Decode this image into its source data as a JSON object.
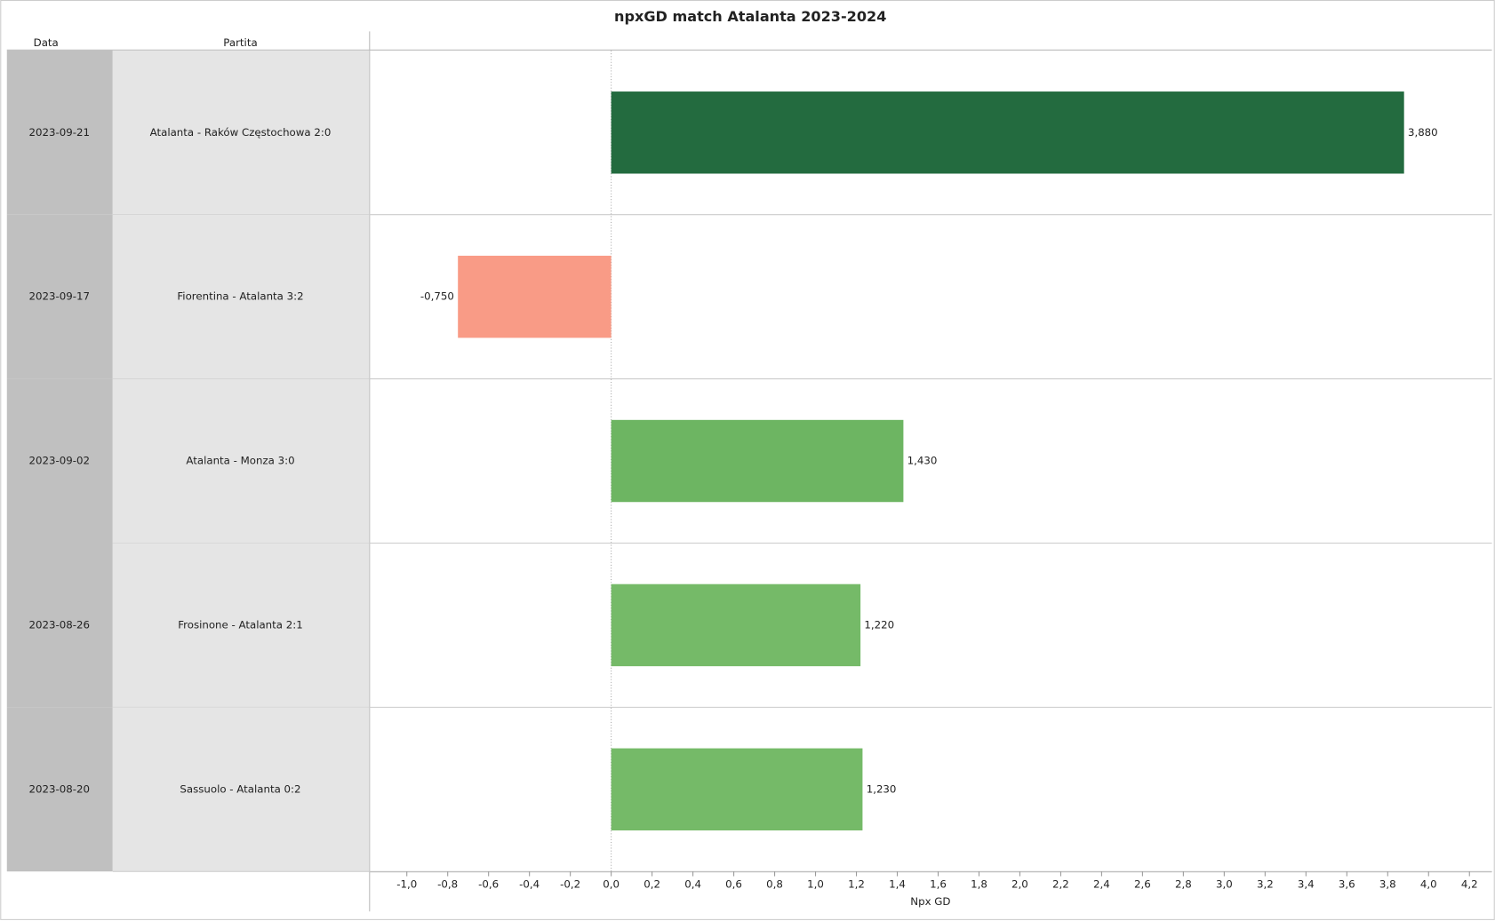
{
  "chart_data": {
    "type": "bar",
    "orientation": "horizontal",
    "title": "npxGD match Atalanta 2023-2024",
    "row_headers": [
      "Data",
      "Partita"
    ],
    "dates": [
      "2023-09-21",
      "2023-09-17",
      "2023-09-02",
      "2023-08-26",
      "2023-08-20"
    ],
    "categories": [
      "Atalanta - Raków Częstochowa 2:0",
      "Fiorentina - Atalanta 3:2",
      "Atalanta - Monza 3:0",
      "Frosinone - Atalanta 2:1",
      "Sassuolo - Atalanta 0:2"
    ],
    "values": [
      3.88,
      -0.75,
      1.43,
      1.22,
      1.23
    ],
    "value_labels": [
      "3,880",
      "-0,750",
      "1,430",
      "1,220",
      "1,230"
    ],
    "colors": [
      "#236b3f",
      "#f99b86",
      "#6db562",
      "#75ba68",
      "#75ba68"
    ],
    "xlabel": "Npx GD",
    "xlim": [
      -1.18,
      4.31
    ],
    "xticks": [
      {
        "value": -1.0,
        "label": "-1,0"
      },
      {
        "value": -0.8,
        "label": "-0,8"
      },
      {
        "value": -0.6,
        "label": "-0,6"
      },
      {
        "value": -0.4,
        "label": "-0,4"
      },
      {
        "value": -0.2,
        "label": "-0,2"
      },
      {
        "value": 0.0,
        "label": "0,0"
      },
      {
        "value": 0.2,
        "label": "0,2"
      },
      {
        "value": 0.4,
        "label": "0,4"
      },
      {
        "value": 0.6,
        "label": "0,6"
      },
      {
        "value": 0.8,
        "label": "0,8"
      },
      {
        "value": 1.0,
        "label": "1,0"
      },
      {
        "value": 1.2,
        "label": "1,2"
      },
      {
        "value": 1.4,
        "label": "1,4"
      },
      {
        "value": 1.6,
        "label": "1,6"
      },
      {
        "value": 1.8,
        "label": "1,8"
      },
      {
        "value": 2.0,
        "label": "2,0"
      },
      {
        "value": 2.2,
        "label": "2,2"
      },
      {
        "value": 2.4,
        "label": "2,4"
      },
      {
        "value": 2.6,
        "label": "2,6"
      },
      {
        "value": 2.8,
        "label": "2,8"
      },
      {
        "value": 3.0,
        "label": "3,0"
      },
      {
        "value": 3.2,
        "label": "3,2"
      },
      {
        "value": 3.4,
        "label": "3,4"
      },
      {
        "value": 3.6,
        "label": "3,6"
      },
      {
        "value": 3.8,
        "label": "3,8"
      },
      {
        "value": 4.0,
        "label": "4,0"
      },
      {
        "value": 4.2,
        "label": "4,2"
      }
    ]
  }
}
